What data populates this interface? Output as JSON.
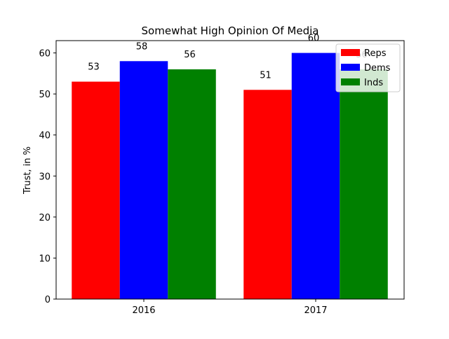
{
  "chart_data": {
    "type": "bar",
    "title": "Somewhat High Opinion Of Media",
    "xlabel": "",
    "ylabel": "Trust, in %",
    "categories": [
      "2016",
      "2017"
    ],
    "series": [
      {
        "name": "Reps",
        "values": [
          53,
          51
        ],
        "color": "#ff0000"
      },
      {
        "name": "Dems",
        "values": [
          58,
          60
        ],
        "color": "#0000ff"
      },
      {
        "name": "Inds",
        "values": [
          56,
          56
        ],
        "color": "#008000"
      }
    ],
    "ylim": [
      0,
      63
    ],
    "yticks": [
      0,
      10,
      20,
      30,
      40,
      50,
      60
    ],
    "grid": false,
    "legend_position": "top-right"
  }
}
